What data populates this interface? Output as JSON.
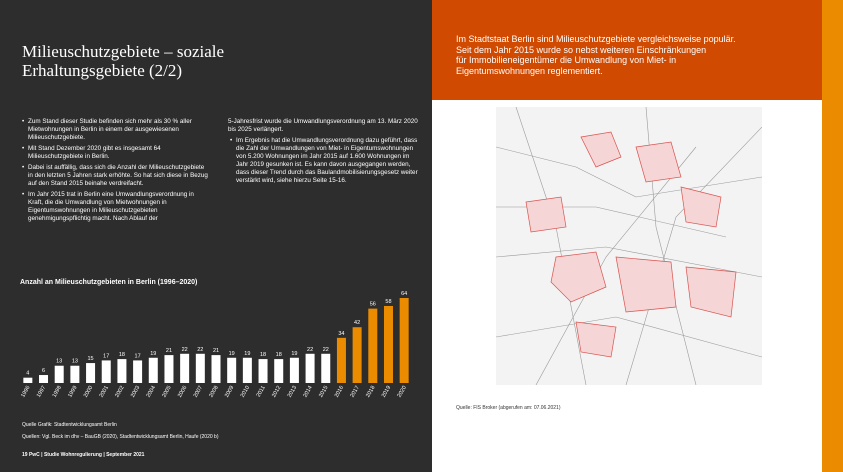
{
  "title": {
    "lines": [
      "Milieuschutzgebiete – soziale",
      "Erhaltungsgebiete (2/2)"
    ]
  },
  "columns": [
    [
      {
        "text": "Zum Stand dieser Studie befinden sich mehr als 30 % aller Mietwohnungen in Berlin in einem der ausgewiesenen Milieuschutzgebiete.",
        "bullet": true
      },
      {
        "text": "Mit Stand Dezember 2020 gibt es insgesamt 64 Milieuschutzgebiete in Berlin.",
        "bullet": true
      },
      {
        "text": "Dabei ist auffällig, dass sich die Anzahl der Milieuschutzgebiete in den letzten 5 Jahren stark erhöhte. So hat sich diese in Bezug auf den Stand 2015 beinahe verdreifacht.",
        "bullet": true
      },
      {
        "text": "Im Jahr 2015 trat in Berlin eine Umwandlungsverordnung in Kraft, die die Umwandlung von Mietwohnungen in Eigentumswohnungen in Milieuschutzgebieten genehmigungspflichtig macht. Nach Ablauf der",
        "bullet": true
      }
    ],
    [
      {
        "text": "5-Jahresfrist wurde die Umwandlungsverordnung am 13. März 2020 bis 2025 verlängert.",
        "bullet": false
      },
      {
        "text": "Im Ergebnis hat die Umwandlungsverordnung dazu geführt, dass die Zahl der Umwandlungen von Miet- in Eigentumswohnungen von 5.200 Wohnungen im Jahr 2015 auf 1.600 Wohnungen im Jahr 2019 gesunken ist. Es kann davon ausgegangen werden, dass dieser Trend durch das Baulandmobilisierungsgesetz weiter verstärkt wird, siehe hierzu Seite 15-16.",
        "bullet": true
      }
    ]
  ],
  "chart_data": {
    "type": "bar",
    "title": "Anzahl an Milieuschutzgebieten in Berlin (1996–2020)",
    "categories": [
      "1996",
      "1997",
      "1998",
      "1999",
      "2000",
      "2001",
      "2002",
      "2003",
      "2004",
      "2005",
      "2006",
      "2007",
      "2008",
      "2009",
      "2010",
      "2011",
      "2012",
      "2013",
      "2014",
      "2015",
      "2016",
      "2017",
      "2018",
      "2019",
      "2020"
    ],
    "values": [
      4,
      6,
      13,
      13,
      15,
      17,
      18,
      17,
      19,
      21,
      22,
      22,
      21,
      19,
      19,
      18,
      18,
      19,
      22,
      22,
      34,
      42,
      56,
      58,
      64
    ],
    "colors": [
      "#ffffff",
      "#ffffff",
      "#ffffff",
      "#ffffff",
      "#ffffff",
      "#ffffff",
      "#ffffff",
      "#ffffff",
      "#ffffff",
      "#ffffff",
      "#ffffff",
      "#ffffff",
      "#ffffff",
      "#ffffff",
      "#ffffff",
      "#ffffff",
      "#ffffff",
      "#ffffff",
      "#ffffff",
      "#ffffff",
      "#eb8c00",
      "#eb8c00",
      "#eb8c00",
      "#eb8c00",
      "#eb8c00"
    ]
  },
  "sources": [
    "Quelle Grafik: Stadtentwicklungsamt Berlin",
    "Quellen: Vgl. Beck im dhv – BauGB (2020), Stadtentwicklungsamt Berlin, Haufe (2020 b)"
  ],
  "footer": "19 PwC | Studie Wohnregulierung | September 2021",
  "right": {
    "header": [
      "Im Stadtstaat Berlin sind Milieuschutzgebiete vergleichsweise populär.",
      "Seit dem Jahr 2015 wurde so nebst weiteren Einschränkungen",
      "für Immobilieneigentümer die Umwandlung von Miet- in",
      "Eigentumswohnungen reglementiert."
    ],
    "source": "Quelle: FIS Broker (abgerufen am: 07.06.2021)"
  }
}
